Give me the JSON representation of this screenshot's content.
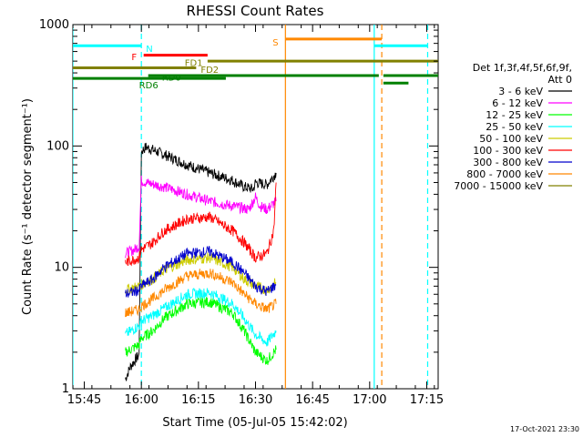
{
  "chart_data": {
    "type": "line",
    "title": "RHESSI Count Rates",
    "xlabel": "Start Time (05-Jul-05 15:42:02)",
    "ylabel": "Count Rate (s⁻¹ detector segment⁻¹)",
    "x_unit": "minutes",
    "xlim": [
      15.7,
      17.3
    ],
    "ylim": [
      1,
      1000
    ],
    "yscale": "log",
    "x_ticks": [
      {
        "t": 15.75,
        "label": "15:45"
      },
      {
        "t": 16.0,
        "label": "16:00"
      },
      {
        "t": 16.25,
        "label": "16:15"
      },
      {
        "t": 16.5,
        "label": "16:30"
      },
      {
        "t": 16.75,
        "label": "16:45"
      },
      {
        "t": 17.0,
        "label": "17:00"
      },
      {
        "t": 17.25,
        "label": "17:15"
      }
    ],
    "y_ticks": [
      {
        "v": 1,
        "label": "1"
      },
      {
        "v": 10,
        "label": "10"
      },
      {
        "v": 100,
        "label": "100"
      },
      {
        "v": 1000,
        "label": "1000"
      }
    ],
    "legend": {
      "header_1": "Det 1f,3f,4f,5f,6f,9f,",
      "header_2": "Att 0",
      "placement": "right"
    },
    "series": [
      {
        "name": "3 - 6 keV",
        "color": "#000000",
        "x": [
          15.93,
          15.95,
          15.97,
          15.99,
          16.0,
          16.02,
          16.1,
          16.2,
          16.3,
          16.4,
          16.45,
          16.49,
          16.5,
          16.55,
          16.59
        ],
        "y": [
          1.2,
          1.5,
          1.7,
          1.9,
          90,
          98,
          85,
          70,
          60,
          52,
          46,
          44,
          50,
          48,
          60
        ]
      },
      {
        "name": "6 - 12 keV",
        "color": "#ff00ff",
        "x": [
          15.93,
          15.97,
          15.99,
          16.0,
          16.02,
          16.1,
          16.2,
          16.3,
          16.4,
          16.47,
          16.5,
          16.52,
          16.55,
          16.59
        ],
        "y": [
          13,
          14,
          15,
          52,
          50,
          46,
          40,
          35,
          32,
          30,
          38,
          32,
          30,
          35
        ]
      },
      {
        "name": "12 - 25 keV",
        "color": "#00ff00",
        "x": [
          15.93,
          15.99,
          16.0,
          16.05,
          16.1,
          16.2,
          16.3,
          16.4,
          16.45,
          16.5,
          16.55,
          16.59
        ],
        "y": [
          2.0,
          2.3,
          2.6,
          3.0,
          3.8,
          5.0,
          5.2,
          4.2,
          3.0,
          2.0,
          1.7,
          2.1
        ]
      },
      {
        "name": "25 - 50 keV",
        "color": "#00ffff",
        "x": [
          15.93,
          15.99,
          16.0,
          16.05,
          16.1,
          16.2,
          16.3,
          16.4,
          16.45,
          16.5,
          16.55,
          16.59
        ],
        "y": [
          2.8,
          3.3,
          3.6,
          4.0,
          4.6,
          6.0,
          6.2,
          5.0,
          3.8,
          2.8,
          2.4,
          3.0
        ]
      },
      {
        "name": "50 - 100 keV",
        "color": "#cccc00",
        "x": [
          15.93,
          15.99,
          16.0,
          16.05,
          16.1,
          16.2,
          16.3,
          16.4,
          16.45,
          16.5,
          16.55,
          16.59
        ],
        "y": [
          6.5,
          7.0,
          7.2,
          8.0,
          9.5,
          11.5,
          12.0,
          10.0,
          8.0,
          7.0,
          6.5,
          7.5
        ]
      },
      {
        "name": "100 - 300 keV",
        "color": "#ff0000",
        "x": [
          15.93,
          15.99,
          16.0,
          16.05,
          16.1,
          16.2,
          16.3,
          16.4,
          16.45,
          16.5,
          16.55,
          16.58,
          16.59
        ],
        "y": [
          11,
          12,
          14,
          16,
          20,
          25,
          26,
          20,
          16,
          12,
          13,
          20,
          50
        ]
      },
      {
        "name": "300 - 800 keV",
        "color": "#0000cc",
        "x": [
          15.93,
          15.99,
          16.0,
          16.05,
          16.1,
          16.2,
          16.3,
          16.4,
          16.45,
          16.5,
          16.55,
          16.59
        ],
        "y": [
          6.0,
          6.5,
          7.0,
          8.0,
          10.0,
          13.0,
          13.5,
          11.0,
          9.0,
          7.0,
          6.3,
          7.2
        ]
      },
      {
        "name": "800 - 7000 keV",
        "color": "#ff8800",
        "x": [
          15.93,
          15.99,
          16.0,
          16.05,
          16.1,
          16.2,
          16.3,
          16.4,
          16.45,
          16.5,
          16.55,
          16.59
        ],
        "y": [
          4.2,
          4.5,
          4.8,
          5.5,
          6.5,
          8.5,
          9.0,
          7.5,
          6.0,
          5.0,
          4.5,
          5.0
        ]
      },
      {
        "name": "7000 - 15000 keV",
        "color": "#808000",
        "x": [],
        "y": []
      }
    ],
    "vertical_lines": [
      {
        "t": 15.7,
        "color": "#00ffff",
        "style": "solid"
      },
      {
        "t": 16.0,
        "color": "#00ffff",
        "style": "dashed"
      },
      {
        "t": 16.631,
        "color": "#ff8800",
        "style": "solid"
      },
      {
        "t": 17.02,
        "color": "#00ffff",
        "style": "solid"
      },
      {
        "t": 17.053,
        "color": "#ff8800",
        "style": "dashed"
      },
      {
        "t": 17.254,
        "color": "#00ffff",
        "style": "dashed"
      }
    ],
    "flag_bars": [
      {
        "label": "N",
        "color": "#00ffff",
        "v": 670,
        "segments": [
          [
            15.7,
            16.0
          ],
          [
            17.02,
            17.254
          ]
        ],
        "label_t": 16.02,
        "label_v": 640,
        "label_anchor": "start"
      },
      {
        "label": "S",
        "color": "#ff8800",
        "v": 760,
        "segments": [
          [
            16.631,
            17.053
          ]
        ],
        "label_t": 16.6,
        "label_v": 720,
        "label_anchor": "end"
      },
      {
        "label": "F",
        "color": "#ff0000",
        "v": 560,
        "segments": [
          [
            16.01,
            16.29
          ]
        ],
        "label_t": 15.98,
        "label_v": 545,
        "label_anchor": "end"
      },
      {
        "label": "FD1",
        "color": "#808000",
        "v": 500,
        "segments": [
          [
            16.29,
            17.31
          ]
        ],
        "label_t": 16.19,
        "label_v": 490,
        "label_anchor": "start"
      },
      {
        "label": "FD2",
        "color": "#808000",
        "v": 440,
        "segments": [
          [
            15.7,
            16.24
          ]
        ],
        "label_t": 16.26,
        "label_v": 430,
        "label_anchor": "start"
      },
      {
        "label": "RD0",
        "color": "#008000",
        "v": 380,
        "segments": [
          [
            16.03,
            17.04
          ],
          [
            17.06,
            17.3
          ]
        ],
        "label_t": 16.09,
        "label_v": 370,
        "label_anchor": "start"
      },
      {
        "label": "RD6",
        "color": "#008000",
        "v": 360,
        "segments": [
          [
            15.7,
            16.37
          ]
        ],
        "label_t": 15.99,
        "label_v": 320,
        "label_anchor": "start"
      },
      {
        "label": "",
        "color": "#008000",
        "v": 330,
        "segments": [
          [
            17.06,
            17.17
          ]
        ],
        "label_t": 17.06,
        "label_v": 330,
        "label_anchor": "start"
      }
    ]
  },
  "footer": {
    "timestamp": "17-Oct-2021 23:30"
  }
}
